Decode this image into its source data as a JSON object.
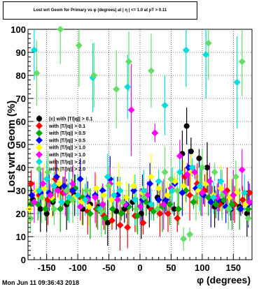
{
  "footer": {
    "timestamp": "Mon Jun 11 09:36:43 2018"
  },
  "chart_data": {
    "type": "scatter",
    "title": "Lost wrt Geom for Primary vs φ (degrees) at | η | <= 1.0 at pT > 0.11",
    "xlabel": "φ (degrees)",
    "ylabel": "Lost wrt Geom (%)",
    "xlim": [
      -180,
      180
    ],
    "ylim": [
      0,
      100
    ],
    "xticks": [
      -150,
      -100,
      -50,
      0,
      50,
      100,
      150
    ],
    "yticks": [
      0,
      10,
      20,
      30,
      40,
      50,
      60,
      70,
      80,
      90,
      100
    ],
    "grid": true,
    "legend_position": "middle-left",
    "series": [
      {
        "name": "(c) with |T/|q|| > 0.1",
        "color": "#000000",
        "marker": "circle",
        "points": [
          [
            -172,
            26
          ],
          [
            -160,
            22
          ],
          [
            -150,
            20
          ],
          [
            -140,
            25
          ],
          [
            -130,
            31
          ],
          [
            -118,
            24
          ],
          [
            -105,
            28
          ],
          [
            -92,
            22
          ],
          [
            -80,
            24
          ],
          [
            -66,
            23
          ],
          [
            -52,
            16
          ],
          [
            -38,
            21
          ],
          [
            -25,
            22
          ],
          [
            -12,
            25
          ],
          [
            2,
            20
          ],
          [
            15,
            23
          ],
          [
            28,
            27
          ],
          [
            40,
            25
          ],
          [
            55,
            22
          ],
          [
            68,
            46
          ],
          [
            75,
            58
          ],
          [
            82,
            47
          ],
          [
            95,
            44
          ],
          [
            108,
            40
          ],
          [
            120,
            23
          ],
          [
            132,
            25
          ],
          [
            146,
            22
          ],
          [
            160,
            23
          ],
          [
            172,
            20
          ]
        ]
      },
      {
        "name": "with |T/|q|| > 0.1",
        "color": "#ff0000",
        "marker": "diamond",
        "points": [
          [
            -175,
            33
          ],
          [
            -162,
            28
          ],
          [
            -148,
            26
          ],
          [
            -136,
            35
          ],
          [
            -124,
            29
          ],
          [
            -110,
            30
          ],
          [
            -96,
            27
          ],
          [
            -84,
            21
          ],
          [
            -70,
            22
          ],
          [
            -58,
            19
          ],
          [
            -45,
            17
          ],
          [
            -32,
            15
          ],
          [
            -20,
            14
          ],
          [
            -8,
            19
          ],
          [
            5,
            16
          ],
          [
            18,
            22
          ],
          [
            32,
            20
          ],
          [
            45,
            20
          ],
          [
            60,
            18
          ],
          [
            72,
            36
          ],
          [
            80,
            28
          ],
          [
            92,
            33
          ],
          [
            104,
            30
          ],
          [
            116,
            27
          ],
          [
            128,
            24
          ],
          [
            140,
            30
          ],
          [
            152,
            24
          ],
          [
            165,
            26
          ],
          [
            176,
            29
          ]
        ]
      },
      {
        "name": "with |T/|q|| > 0.5",
        "color": "#00aa00",
        "marker": "diamond",
        "points": [
          [
            -176,
            24
          ],
          [
            -164,
            24
          ],
          [
            -152,
            22
          ],
          [
            -140,
            26
          ],
          [
            -128,
            22
          ],
          [
            -116,
            25
          ],
          [
            -104,
            31
          ],
          [
            -92,
            27
          ],
          [
            -80,
            20
          ],
          [
            -68,
            22
          ],
          [
            -56,
            18
          ],
          [
            -44,
            22
          ],
          [
            -30,
            20
          ],
          [
            -18,
            23
          ],
          [
            -4,
            19
          ],
          [
            10,
            25
          ],
          [
            22,
            21
          ],
          [
            36,
            23
          ],
          [
            48,
            24
          ],
          [
            62,
            22
          ],
          [
            74,
            30
          ],
          [
            86,
            25
          ],
          [
            98,
            29
          ],
          [
            110,
            27
          ],
          [
            122,
            24
          ],
          [
            134,
            26
          ],
          [
            148,
            24
          ],
          [
            160,
            22
          ],
          [
            174,
            22
          ]
        ]
      },
      {
        "name": "with |T/|q|| > 0.5",
        "color": "#0000ff",
        "marker": "diamond",
        "points": [
          [
            -174,
            28
          ],
          [
            -160,
            29
          ],
          [
            -146,
            29
          ],
          [
            -134,
            36
          ],
          [
            -122,
            32
          ],
          [
            -108,
            30
          ],
          [
            -96,
            35
          ],
          [
            -84,
            27
          ],
          [
            -72,
            28
          ],
          [
            -60,
            30
          ],
          [
            -48,
            35
          ],
          [
            -36,
            28
          ],
          [
            -22,
            24
          ],
          [
            -10,
            30
          ],
          [
            4,
            26
          ],
          [
            16,
            33
          ],
          [
            30,
            26
          ],
          [
            42,
            26
          ],
          [
            56,
            33
          ],
          [
            68,
            29
          ],
          [
            78,
            40
          ],
          [
            90,
            31
          ],
          [
            102,
            28
          ],
          [
            114,
            25
          ],
          [
            126,
            26
          ],
          [
            138,
            23
          ],
          [
            150,
            28
          ],
          [
            162,
            22
          ],
          [
            174,
            24
          ]
        ]
      },
      {
        "name": "with |T/|q|| > 1.0",
        "color": "#ffff00",
        "marker": "diamond",
        "points": [
          [
            -178,
            22
          ],
          [
            -166,
            30
          ],
          [
            -154,
            31
          ],
          [
            -142,
            27
          ],
          [
            -130,
            33
          ],
          [
            -118,
            29
          ],
          [
            -106,
            27
          ],
          [
            -94,
            25
          ],
          [
            -82,
            23
          ],
          [
            -70,
            31
          ],
          [
            -58,
            28
          ],
          [
            -46,
            26
          ],
          [
            -34,
            33
          ],
          [
            -22,
            27
          ],
          [
            -10,
            32
          ],
          [
            4,
            29
          ],
          [
            18,
            36
          ],
          [
            30,
            31
          ],
          [
            44,
            28
          ],
          [
            56,
            34
          ],
          [
            70,
            32
          ],
          [
            82,
            38
          ],
          [
            94,
            30
          ],
          [
            106,
            33
          ],
          [
            118,
            28
          ],
          [
            130,
            31
          ],
          [
            144,
            27
          ],
          [
            156,
            29
          ],
          [
            170,
            24
          ]
        ]
      },
      {
        "name": "with |T/|q|| > 1.0",
        "color": "#ff00ff",
        "marker": "diamond",
        "points": [
          [
            -170,
            25
          ],
          [
            -156,
            33
          ],
          [
            -144,
            28
          ],
          [
            -132,
            30
          ],
          [
            -120,
            29
          ],
          [
            -108,
            33
          ],
          [
            -96,
            23
          ],
          [
            -84,
            26
          ],
          [
            -72,
            27
          ],
          [
            -60,
            24
          ],
          [
            -48,
            33
          ],
          [
            -36,
            26
          ],
          [
            -24,
            24
          ],
          [
            -14,
            65
          ],
          [
            0,
            23
          ],
          [
            12,
            28
          ],
          [
            24,
            55
          ],
          [
            38,
            24
          ],
          [
            50,
            31
          ],
          [
            64,
            45
          ],
          [
            76,
            37
          ],
          [
            88,
            38
          ],
          [
            100,
            29
          ],
          [
            112,
            34
          ],
          [
            124,
            27
          ],
          [
            136,
            29
          ],
          [
            150,
            28
          ],
          [
            164,
            39
          ],
          [
            176,
            25
          ]
        ]
      },
      {
        "name": "with |T/|q|| > 2.0",
        "color": "#00dddd",
        "marker": "diamond",
        "points": [
          [
            -170,
            91
          ],
          [
            -162,
            30
          ],
          [
            -150,
            35
          ],
          [
            -138,
            32
          ],
          [
            -126,
            25
          ],
          [
            -114,
            27
          ],
          [
            -100,
            28
          ],
          [
            -88,
            26
          ],
          [
            -76,
            79
          ],
          [
            -64,
            22
          ],
          [
            -52,
            36
          ],
          [
            -42,
            28
          ],
          [
            -32,
            30
          ],
          [
            -20,
            75
          ],
          [
            -8,
            26
          ],
          [
            6,
            30
          ],
          [
            18,
            24
          ],
          [
            30,
            34
          ],
          [
            40,
            67
          ],
          [
            52,
            30
          ],
          [
            64,
            38
          ],
          [
            74,
            91
          ],
          [
            84,
            40
          ],
          [
            96,
            32
          ],
          [
            106,
            89
          ],
          [
            118,
            27
          ],
          [
            130,
            34
          ],
          [
            144,
            22
          ],
          [
            156,
            77
          ],
          [
            168,
            29
          ]
        ]
      },
      {
        "name": "with |T/|q|| > 2.0",
        "color": "#66dd66",
        "marker": "diamond",
        "points": [
          [
            -176,
            18
          ],
          [
            -166,
            81
          ],
          [
            -158,
            27
          ],
          [
            -148,
            38
          ],
          [
            -138,
            22
          ],
          [
            -128,
            100
          ],
          [
            -118,
            30
          ],
          [
            -108,
            26
          ],
          [
            -98,
            93
          ],
          [
            -86,
            30
          ],
          [
            -74,
            80
          ],
          [
            -62,
            21
          ],
          [
            -50,
            32
          ],
          [
            -38,
            74
          ],
          [
            -28,
            25
          ],
          [
            -18,
            86
          ],
          [
            -6,
            22
          ],
          [
            6,
            27
          ],
          [
            18,
            82
          ],
          [
            28,
            22
          ],
          [
            40,
            38
          ],
          [
            50,
            35
          ],
          [
            60,
            30
          ],
          [
            70,
            9
          ],
          [
            80,
            11
          ],
          [
            90,
            27
          ],
          [
            100,
            40
          ],
          [
            110,
            94
          ],
          [
            120,
            38
          ],
          [
            132,
            28
          ],
          [
            142,
            22
          ],
          [
            154,
            36
          ],
          [
            164,
            86
          ],
          [
            174,
            18
          ]
        ]
      }
    ]
  }
}
